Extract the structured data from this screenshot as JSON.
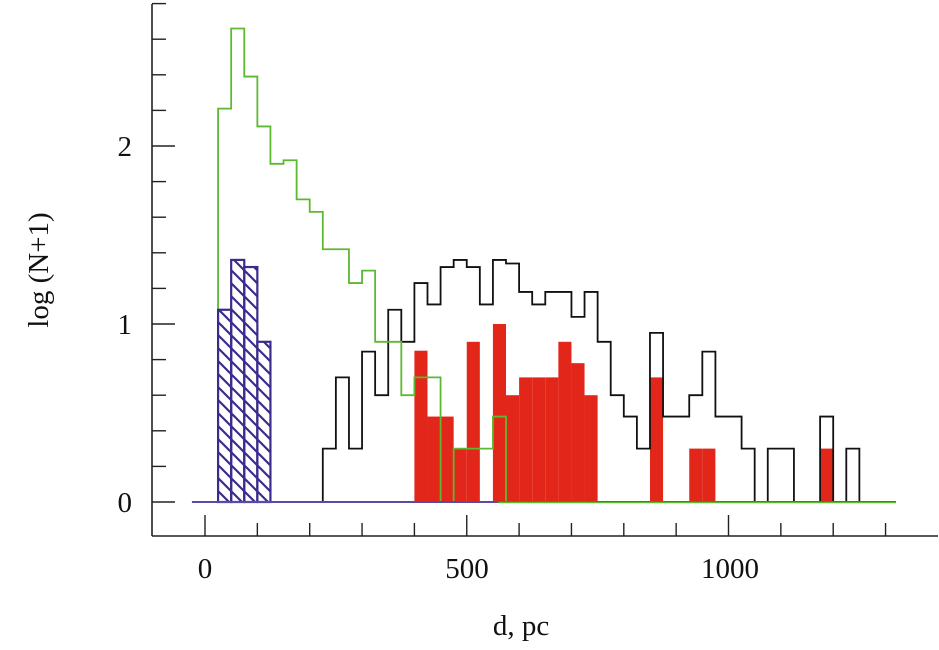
{
  "chart_data": {
    "type": "histogram",
    "xlabel": "d, pc",
    "ylabel": "log (N+1)",
    "xlim": [
      -25,
      1320
    ],
    "ylim": [
      0,
      2.8
    ],
    "x_ticks": {
      "major": [
        0,
        500,
        1000
      ],
      "labels": [
        "0",
        "500",
        "1000"
      ],
      "minor_step": 100
    },
    "y_ticks": {
      "major": [
        0,
        1,
        2
      ],
      "labels": [
        "0",
        "1",
        "2"
      ],
      "minor_step": 0.2
    },
    "bin_width": 25,
    "series": [
      {
        "style": "filled",
        "color": "#e3261a",
        "bins": [
          [
            400,
            0.85
          ],
          [
            425,
            0.48
          ],
          [
            450,
            0.48
          ],
          [
            475,
            0.3
          ],
          [
            500,
            0.9
          ],
          [
            550,
            1.0
          ],
          [
            575,
            0.6
          ],
          [
            600,
            0.7
          ],
          [
            625,
            0.7
          ],
          [
            650,
            0.7
          ],
          [
            675,
            0.9
          ],
          [
            700,
            0.78
          ],
          [
            725,
            0.6
          ],
          [
            850,
            0.7
          ],
          [
            925,
            0.3
          ],
          [
            950,
            0.3
          ],
          [
            1175,
            0.3
          ]
        ]
      },
      {
        "style": "step",
        "color": "#111111",
        "bins": [
          [
            225,
            0.3
          ],
          [
            250,
            0.7
          ],
          [
            275,
            0.3
          ],
          [
            300,
            0.845
          ],
          [
            325,
            0.6
          ],
          [
            350,
            1.08
          ],
          [
            375,
            0.9
          ],
          [
            400,
            1.23
          ],
          [
            425,
            1.11
          ],
          [
            450,
            1.32
          ],
          [
            475,
            1.36
          ],
          [
            500,
            1.32
          ],
          [
            525,
            1.11
          ],
          [
            550,
            1.36
          ],
          [
            575,
            1.34
          ],
          [
            600,
            1.18
          ],
          [
            625,
            1.11
          ],
          [
            650,
            1.18
          ],
          [
            675,
            1.18
          ],
          [
            700,
            1.04
          ],
          [
            725,
            1.18
          ],
          [
            750,
            0.9
          ],
          [
            775,
            0.6
          ],
          [
            800,
            0.48
          ],
          [
            825,
            0.3
          ],
          [
            850,
            0.95
          ],
          [
            875,
            0.48
          ],
          [
            900,
            0.48
          ],
          [
            925,
            0.6
          ],
          [
            950,
            0.845
          ],
          [
            975,
            0.48
          ],
          [
            1000,
            0.48
          ],
          [
            1025,
            0.3
          ],
          [
            1050,
            0
          ],
          [
            1075,
            0.3
          ],
          [
            1100,
            0.3
          ],
          [
            1125,
            0
          ],
          [
            1150,
            0
          ],
          [
            1175,
            0.48
          ],
          [
            1200,
            0
          ],
          [
            1225,
            0.3
          ]
        ]
      },
      {
        "style": "step",
        "color": "#5db832",
        "bins": [
          [
            25,
            2.21
          ],
          [
            50,
            2.66
          ],
          [
            75,
            2.39
          ],
          [
            100,
            2.11
          ],
          [
            125,
            1.9
          ],
          [
            150,
            1.92
          ],
          [
            175,
            1.7
          ],
          [
            200,
            1.63
          ],
          [
            225,
            1.42
          ],
          [
            250,
            1.42
          ],
          [
            275,
            1.23
          ],
          [
            300,
            1.3
          ],
          [
            325,
            0.9
          ],
          [
            350,
            0.9
          ],
          [
            375,
            0.6
          ],
          [
            400,
            0.7
          ],
          [
            425,
            0.7
          ],
          [
            450,
            0
          ],
          [
            475,
            0.3
          ],
          [
            500,
            0.3
          ],
          [
            525,
            0.3
          ],
          [
            550,
            0.48
          ]
        ]
      },
      {
        "style": "hatched",
        "color": "#3a2c8c",
        "bins": [
          [
            25,
            1.08
          ],
          [
            50,
            1.36
          ],
          [
            75,
            1.32
          ],
          [
            100,
            0.9
          ]
        ]
      }
    ]
  }
}
